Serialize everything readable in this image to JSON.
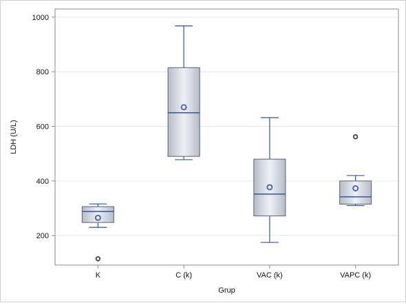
{
  "chart_data": {
    "type": "boxplot",
    "title": "",
    "xlabel": "Grup",
    "ylabel": "LDH (U/L)",
    "ylim": [
      92,
      1030
    ],
    "yticks": [
      200,
      400,
      600,
      800,
      1000
    ],
    "grid": true,
    "legend": "none",
    "categories": [
      "K",
      "C (k)",
      "VAC (k)",
      "VAPC (k)"
    ],
    "boxes": [
      {
        "category": "K",
        "whisker_low": 230,
        "q1": 248,
        "median": 288,
        "q3": 306,
        "whisker_high": 316,
        "mean": 265,
        "outliers": [
          115
        ]
      },
      {
        "category": "C (k)",
        "whisker_low": 478,
        "q1": 490,
        "median": 650,
        "q3": 815,
        "whisker_high": 968,
        "mean": 670,
        "outliers": []
      },
      {
        "category": "VAC (k)",
        "whisker_low": 175,
        "q1": 272,
        "median": 352,
        "q3": 480,
        "whisker_high": 632,
        "mean": 377,
        "outliers": []
      },
      {
        "category": "VAPC (k)",
        "whisker_low": 310,
        "q1": 315,
        "median": 342,
        "q3": 400,
        "whisker_high": 420,
        "mean": 373,
        "outliers": [
          562
        ]
      }
    ],
    "colors": {
      "box_fill_edge": "#b6bcc8",
      "box_fill_center": "#eef0f5",
      "box_stroke": "#5a5f6a",
      "median": "#2f56a0",
      "whisker": "#2f56a0",
      "mean_marker": "#4a6aa8",
      "outlier": "#444444",
      "grid": "#e4e4e4",
      "axis": "#8a8a8a"
    }
  }
}
